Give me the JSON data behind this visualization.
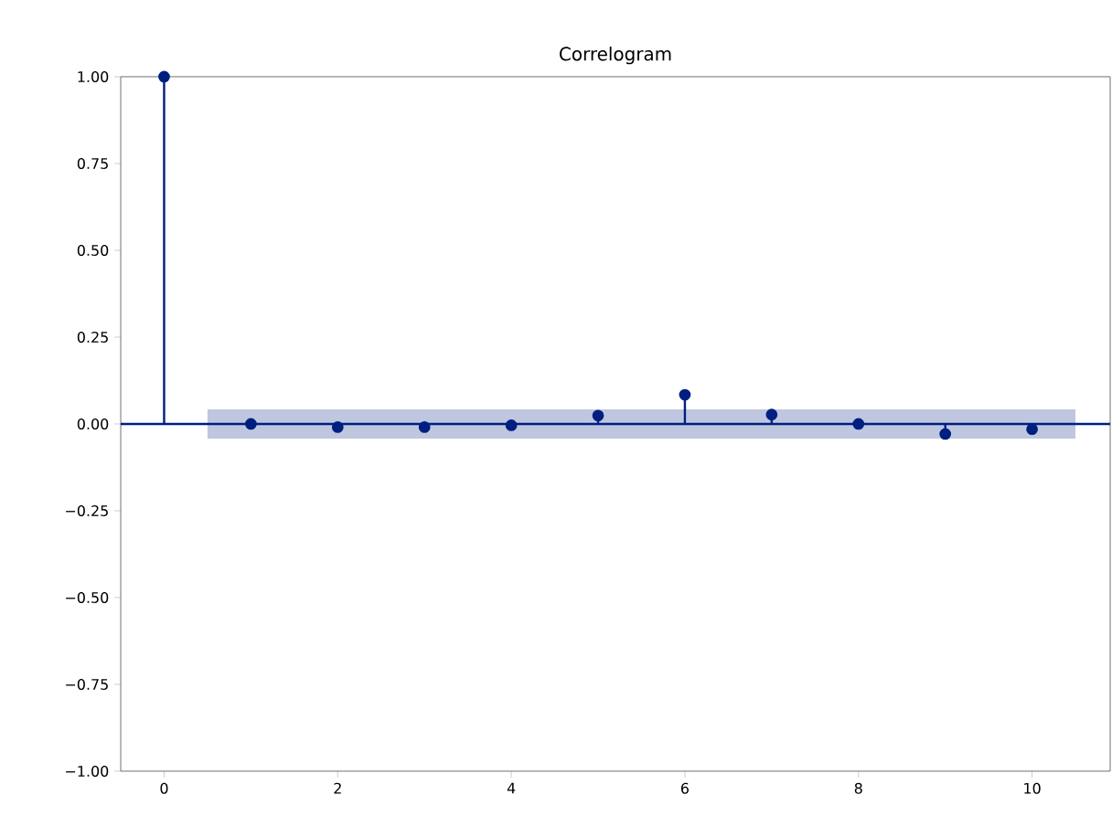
{
  "chart_data": {
    "type": "lollipop",
    "title": "Correlogram",
    "x": [
      0,
      1,
      2,
      3,
      4,
      5,
      6,
      7,
      8,
      9,
      10
    ],
    "values": [
      1.0,
      0.0,
      -0.009,
      -0.009,
      -0.004,
      0.024,
      0.084,
      0.027,
      0.0,
      -0.029,
      -0.015
    ],
    "color": "#001f80",
    "marker": "circle",
    "xlim": [
      -0.5,
      10.9
    ],
    "xticks": [
      0,
      2,
      4,
      6,
      8,
      10
    ],
    "ylim": [
      -1.0,
      1.0
    ],
    "yticks": [
      {
        "value": -1.0,
        "label": "−1.00"
      },
      {
        "value": -0.75,
        "label": "−0.75"
      },
      {
        "value": -0.5,
        "label": "−0.50"
      },
      {
        "value": -0.25,
        "label": "−0.25"
      },
      {
        "value": 0.0,
        "label": "0.00"
      },
      {
        "value": 0.25,
        "label": "0.25"
      },
      {
        "value": 0.5,
        "label": "0.50"
      },
      {
        "value": 0.75,
        "label": "0.75"
      },
      {
        "value": 1.0,
        "label": "1.00"
      }
    ],
    "ref_lines": [
      {
        "axis": "y",
        "value": 0.0,
        "color": "#001f80"
      }
    ],
    "bands": [
      {
        "axis": "y",
        "from": -0.042,
        "to": 0.042,
        "color": "#bfc6df"
      }
    ],
    "grid": false
  }
}
